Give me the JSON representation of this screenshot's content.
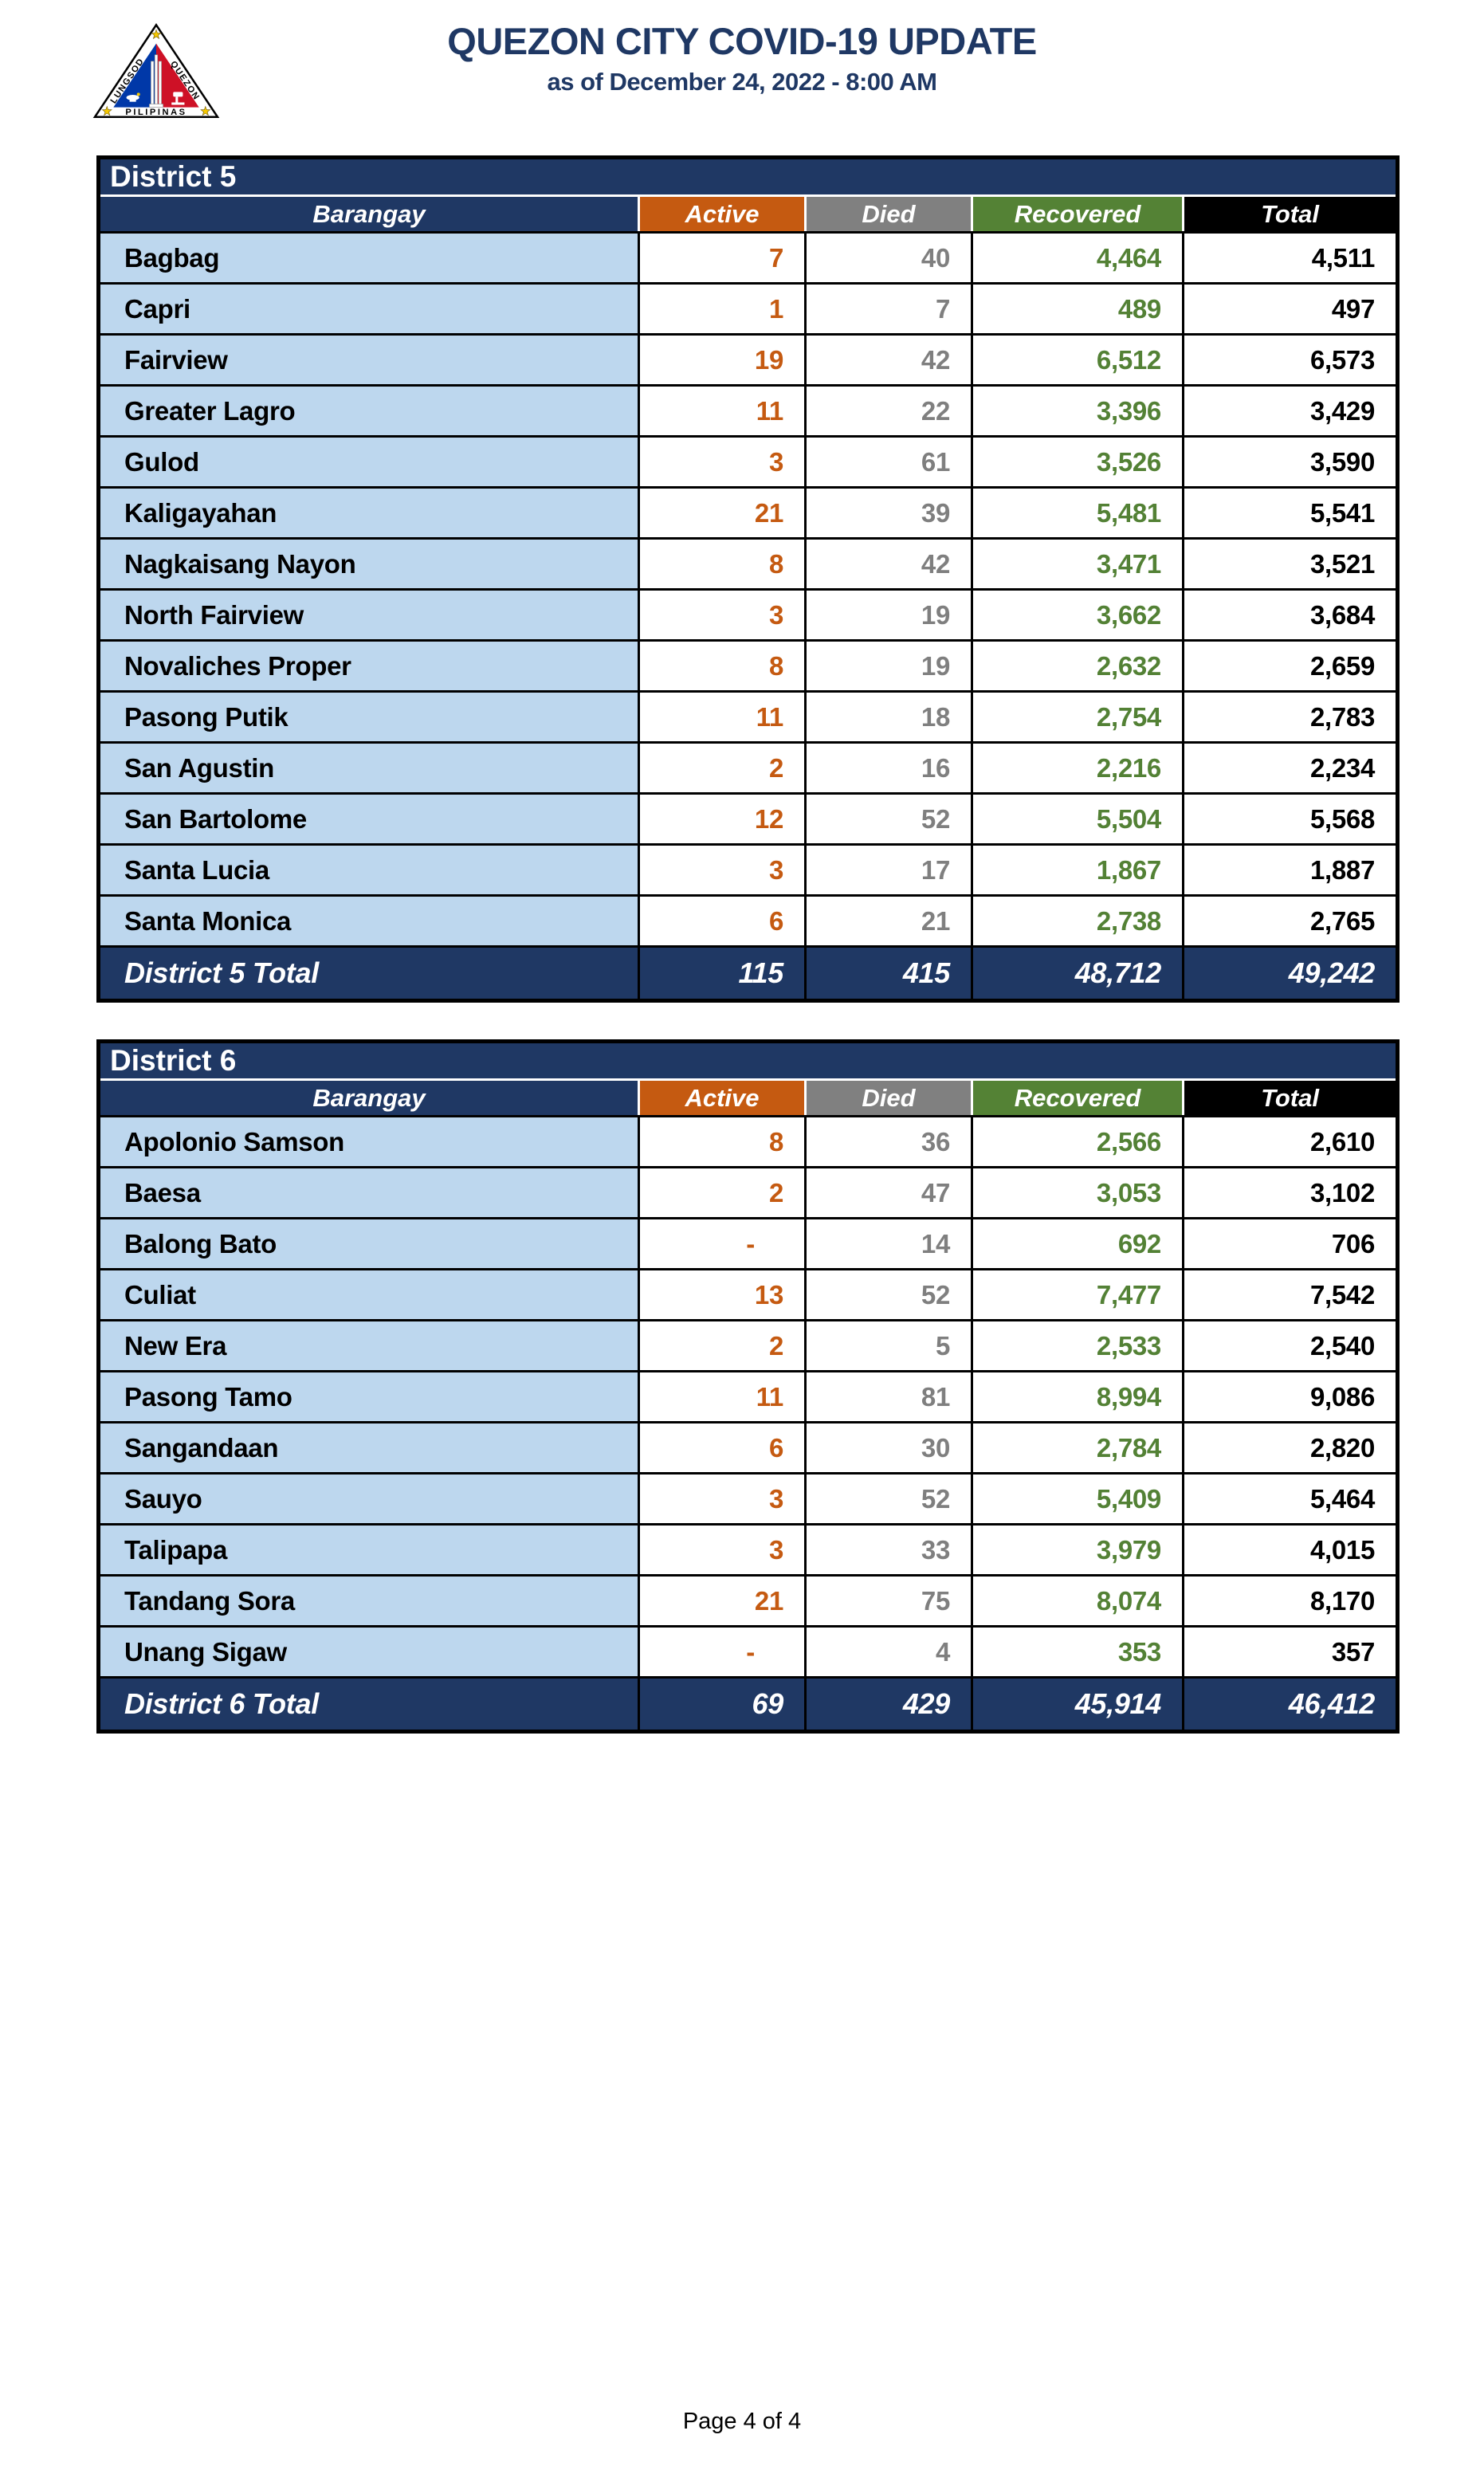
{
  "header": {
    "title": "QUEZON CITY COVID-19 UPDATE",
    "subtitle": "as of December 24, 2022 - 8:00 AM",
    "logo": {
      "side_left": "LUNGSOD",
      "side_right": "QUEZON",
      "bottom": "PILIPINAS"
    }
  },
  "colors": {
    "navy": "#1F3864",
    "active_accent": "#C55A11",
    "died_accent": "#7F7F7F",
    "recovered_accent": "#538135",
    "total_accent": "#000000",
    "row_blue": "#BDD7EE",
    "seal_blue": "#0038A8",
    "seal_red": "#CE1126",
    "seal_star": "#F7C900"
  },
  "columns": [
    "Barangay",
    "Active",
    "Died",
    "Recovered",
    "Total"
  ],
  "tables": [
    {
      "district": "District 5",
      "rows": [
        {
          "barangay": "Bagbag",
          "active": "7",
          "died": "40",
          "recovered": "4,464",
          "total": "4,511"
        },
        {
          "barangay": "Capri",
          "active": "1",
          "died": "7",
          "recovered": "489",
          "total": "497"
        },
        {
          "barangay": "Fairview",
          "active": "19",
          "died": "42",
          "recovered": "6,512",
          "total": "6,573"
        },
        {
          "barangay": "Greater Lagro",
          "active": "11",
          "died": "22",
          "recovered": "3,396",
          "total": "3,429"
        },
        {
          "barangay": "Gulod",
          "active": "3",
          "died": "61",
          "recovered": "3,526",
          "total": "3,590"
        },
        {
          "barangay": "Kaligayahan",
          "active": "21",
          "died": "39",
          "recovered": "5,481",
          "total": "5,541"
        },
        {
          "barangay": "Nagkaisang Nayon",
          "active": "8",
          "died": "42",
          "recovered": "3,471",
          "total": "3,521"
        },
        {
          "barangay": "North Fairview",
          "active": "3",
          "died": "19",
          "recovered": "3,662",
          "total": "3,684"
        },
        {
          "barangay": "Novaliches Proper",
          "active": "8",
          "died": "19",
          "recovered": "2,632",
          "total": "2,659"
        },
        {
          "barangay": "Pasong Putik",
          "active": "11",
          "died": "18",
          "recovered": "2,754",
          "total": "2,783"
        },
        {
          "barangay": "San Agustin",
          "active": "2",
          "died": "16",
          "recovered": "2,216",
          "total": "2,234"
        },
        {
          "barangay": "San Bartolome",
          "active": "12",
          "died": "52",
          "recovered": "5,504",
          "total": "5,568"
        },
        {
          "barangay": "Santa Lucia",
          "active": "3",
          "died": "17",
          "recovered": "1,867",
          "total": "1,887"
        },
        {
          "barangay": "Santa Monica",
          "active": "6",
          "died": "21",
          "recovered": "2,738",
          "total": "2,765"
        }
      ],
      "total": {
        "label": "District 5 Total",
        "active": "115",
        "died": "415",
        "recovered": "48,712",
        "total": "49,242"
      }
    },
    {
      "district": "District 6",
      "rows": [
        {
          "barangay": "Apolonio Samson",
          "active": "8",
          "died": "36",
          "recovered": "2,566",
          "total": "2,610"
        },
        {
          "barangay": "Baesa",
          "active": "2",
          "died": "47",
          "recovered": "3,053",
          "total": "3,102"
        },
        {
          "barangay": "Balong Bato",
          "active": "-",
          "died": "14",
          "recovered": "692",
          "total": "706"
        },
        {
          "barangay": "Culiat",
          "active": "13",
          "died": "52",
          "recovered": "7,477",
          "total": "7,542"
        },
        {
          "barangay": "New Era",
          "active": "2",
          "died": "5",
          "recovered": "2,533",
          "total": "2,540"
        },
        {
          "barangay": "Pasong Tamo",
          "active": "11",
          "died": "81",
          "recovered": "8,994",
          "total": "9,086"
        },
        {
          "barangay": "Sangandaan",
          "active": "6",
          "died": "30",
          "recovered": "2,784",
          "total": "2,820"
        },
        {
          "barangay": "Sauyo",
          "active": "3",
          "died": "52",
          "recovered": "5,409",
          "total": "5,464"
        },
        {
          "barangay": "Talipapa",
          "active": "3",
          "died": "33",
          "recovered": "3,979",
          "total": "4,015"
        },
        {
          "barangay": "Tandang Sora",
          "active": "21",
          "died": "75",
          "recovered": "8,074",
          "total": "8,170"
        },
        {
          "barangay": "Unang Sigaw",
          "active": "-",
          "died": "4",
          "recovered": "353",
          "total": "357"
        }
      ],
      "total": {
        "label": "District 6 Total",
        "active": "69",
        "died": "429",
        "recovered": "45,914",
        "total": "46,412"
      }
    }
  ],
  "footer": {
    "page": "Page 4 of 4"
  }
}
